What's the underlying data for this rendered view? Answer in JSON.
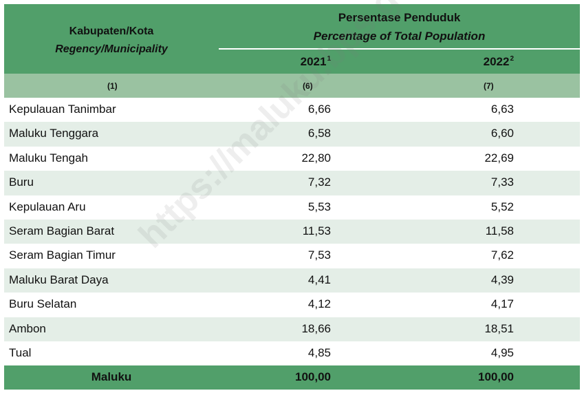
{
  "header": {
    "region_label": "Kabupaten/Kota",
    "region_label_en": "Regency/Municipality",
    "group_label": "Persentase Penduduk",
    "group_label_en": "Percentage of Total Population",
    "years": [
      {
        "year": "2021",
        "note": "1"
      },
      {
        "year": "2022",
        "note": "2"
      }
    ]
  },
  "column_numbers": [
    "(1)",
    "(6)",
    "(7)"
  ],
  "rows": [
    {
      "name": "Kepulauan Tanimbar",
      "y2021": "6,66",
      "y2022": "6,63"
    },
    {
      "name": "Maluku Tenggara",
      "y2021": "6,58",
      "y2022": "6,60"
    },
    {
      "name": "Maluku Tengah",
      "y2021": "22,80",
      "y2022": "22,69"
    },
    {
      "name": "Buru",
      "y2021": "7,32",
      "y2022": "7,33"
    },
    {
      "name": "Kepulauan Aru",
      "y2021": "5,53",
      "y2022": "5,52"
    },
    {
      "name": "Seram Bagian Barat",
      "y2021": "11,53",
      "y2022": "11,58"
    },
    {
      "name": "Seram Bagian Timur",
      "y2021": "7,53",
      "y2022": "7,62"
    },
    {
      "name": "Maluku Barat Daya",
      "y2021": "4,41",
      "y2022": "4,39"
    },
    {
      "name": "Buru Selatan",
      "y2021": "4,12",
      "y2022": "4,17"
    },
    {
      "name": "Ambon",
      "y2021": "18,66",
      "y2022": "18,51"
    },
    {
      "name": "Tual",
      "y2021": "4,85",
      "y2022": "4,95"
    }
  ],
  "total": {
    "name": "Maluku",
    "y2021": "100,00",
    "y2022": "100,00"
  },
  "watermark": "https://maluku.bps.go.id",
  "colors": {
    "header_green": "#519f6a",
    "subheader_green": "#9ac2a1",
    "row_shade": "#e4eee7"
  }
}
